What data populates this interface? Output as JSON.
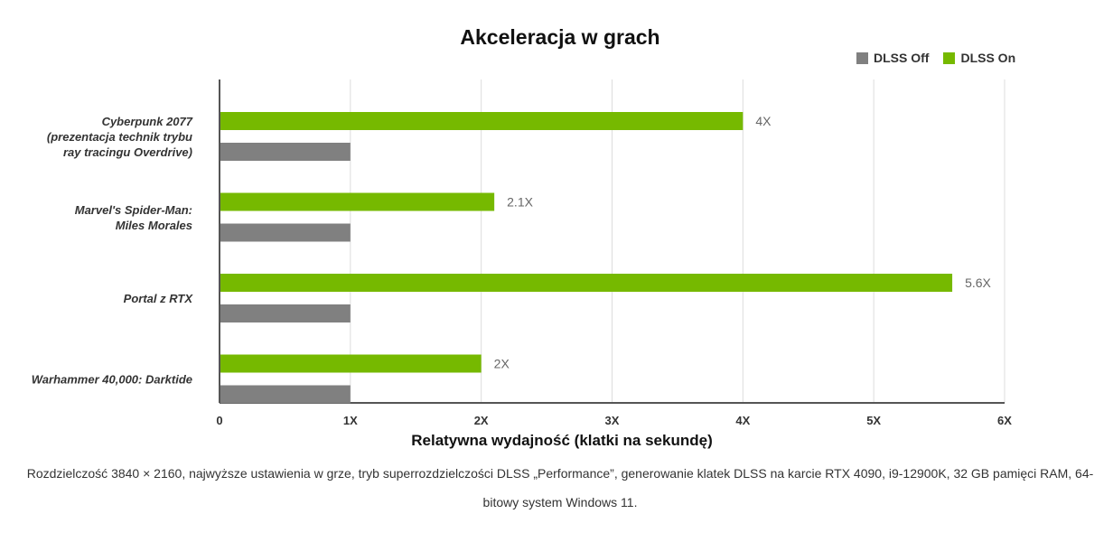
{
  "chart_data": {
    "type": "bar",
    "orientation": "horizontal",
    "title": "Akceleracja w grach",
    "xlabel": "Relatywna wydajność (klatki na sekundę)",
    "ylabel": "",
    "xlim": [
      0,
      6
    ],
    "x_ticks": [
      {
        "value": 0,
        "label": "0"
      },
      {
        "value": 1,
        "label": "1X"
      },
      {
        "value": 2,
        "label": "2X"
      },
      {
        "value": 3,
        "label": "3X"
      },
      {
        "value": 4,
        "label": "4X"
      },
      {
        "value": 5,
        "label": "5X"
      },
      {
        "value": 6,
        "label": "6X"
      }
    ],
    "grid": "vertical",
    "legend_position": "top-right",
    "categories": [
      [
        "Cyberpunk 2077",
        "(prezentacja technik trybu",
        "ray tracingu Overdrive)"
      ],
      [
        "Marvel's Spider-Man:",
        "Miles Morales"
      ],
      [
        "Portal z RTX"
      ],
      [
        "Warhammer 40,000: Darktide"
      ]
    ],
    "series": [
      {
        "name": "DLSS On",
        "color": "#76b900",
        "values": [
          4,
          2.1,
          5.6,
          2
        ],
        "data_labels": [
          "4X",
          "2.1X",
          "5.6X",
          "2X"
        ]
      },
      {
        "name": "DLSS Off",
        "color": "#808080",
        "values": [
          1,
          1,
          1,
          1
        ],
        "data_labels": []
      }
    ],
    "legend": [
      {
        "name": "DLSS Off",
        "color": "#808080"
      },
      {
        "name": "DLSS On",
        "color": "#76b900"
      }
    ]
  },
  "footnote": "Rozdzielczość 3840 × 2160, najwyższe ustawienia w grze, tryb superrozdzielczości DLSS „Performance”, generowanie klatek DLSS na karcie RTX 4090, i9-12900K, 32 GB pamięci RAM, 64-bitowy system Windows 11."
}
